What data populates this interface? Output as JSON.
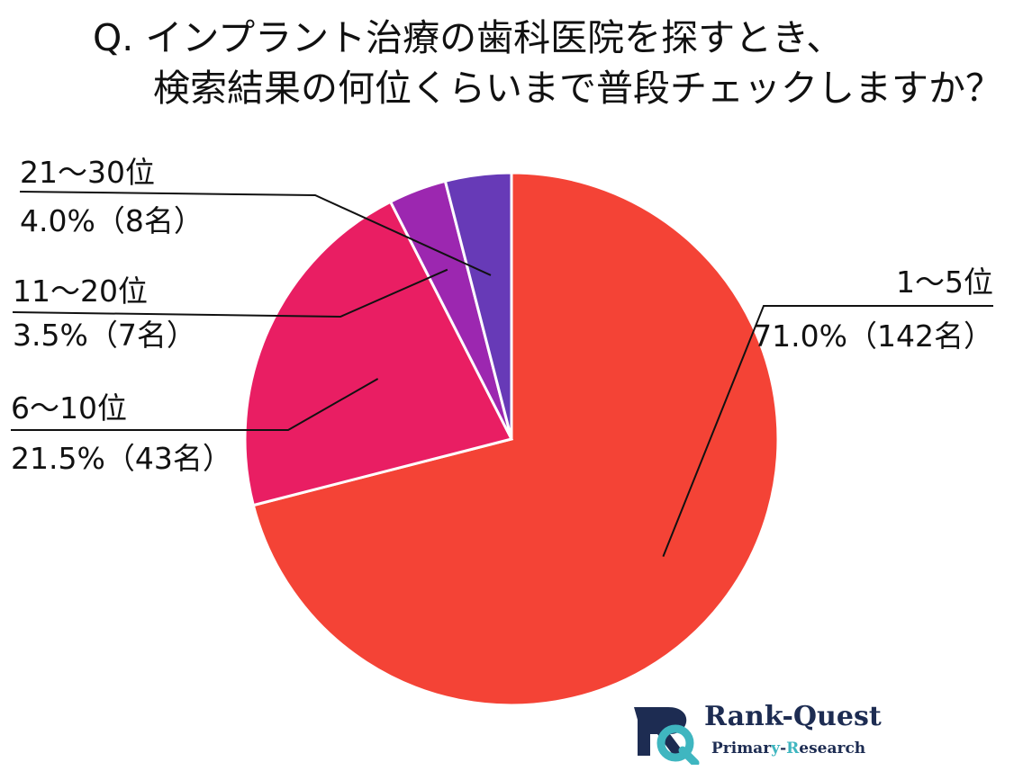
{
  "title": {
    "line1": "Q. インプラント治療の歯科医院を探すとき、",
    "line2": "検索結果の何位くらいまで普段チェックしますか？"
  },
  "chart_data": {
    "type": "pie",
    "start": "12 o'clock, clockwise",
    "slices": [
      {
        "name": "1〜5位",
        "percent": 71.0,
        "count": 142,
        "value_label": "71.0%（142名）",
        "color": "#f44336"
      },
      {
        "name": "6〜10位",
        "percent": 21.5,
        "count": 43,
        "value_label": "21.5%（43名）",
        "color": "#e91e63"
      },
      {
        "name": "11〜20位",
        "percent": 3.5,
        "count": 7,
        "value_label": "3.5%（7名）",
        "color": "#9c27b0"
      },
      {
        "name": "21〜30位",
        "percent": 4.0,
        "count": 8,
        "value_label": "4.0%（8名）",
        "color": "#673ab7"
      }
    ]
  },
  "logo": {
    "name_main": "Rank-",
    "name_accent": "Quest",
    "sub_pre": "Primar",
    "sub_accent1": "y",
    "sub_mid": "-",
    "sub_accent2": "R",
    "sub_post": "esearch",
    "colors": {
      "navy": "#1d2c52",
      "teal": "#3fb6c0"
    }
  }
}
